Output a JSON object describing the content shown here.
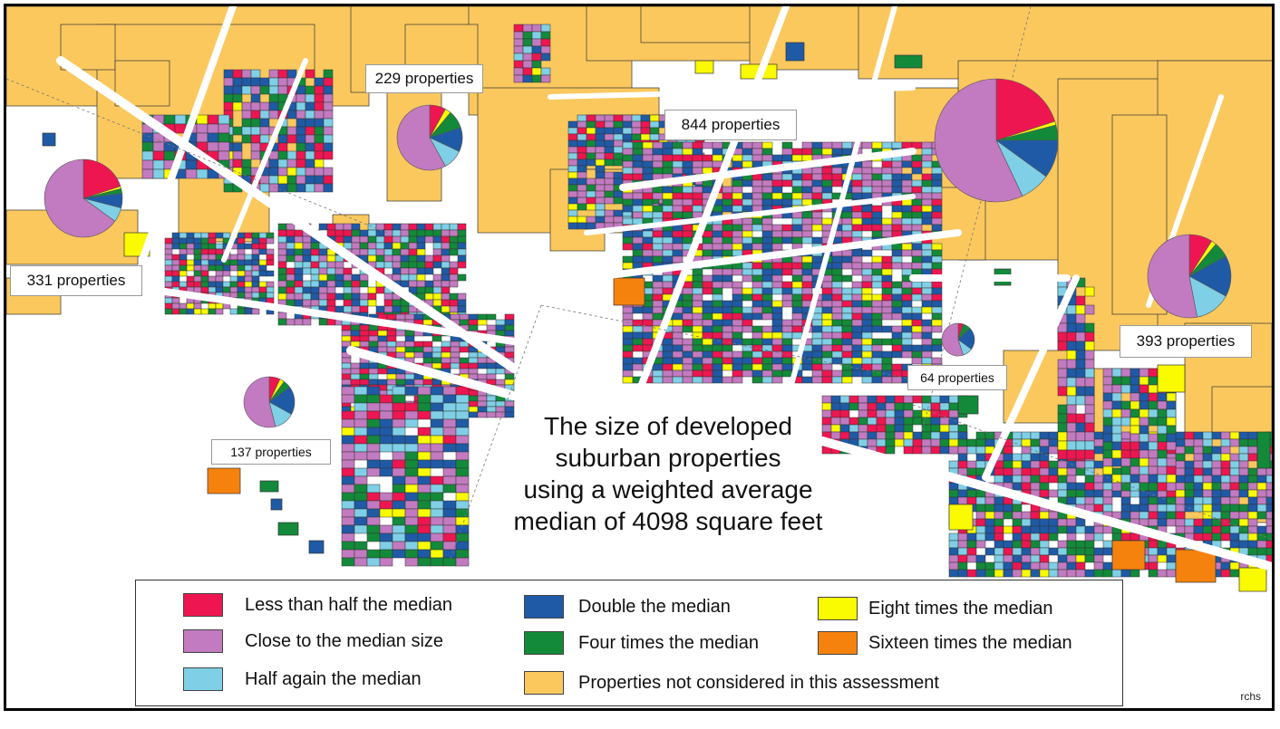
{
  "colors": {
    "less_than_half": "#ee1650",
    "close_to_median": "#c27ac0",
    "half_again": "#7fd0e6",
    "double": "#1f5aa6",
    "four_times": "#138a3a",
    "eight_times": "#fafa00",
    "sixteen_times": "#f6820e",
    "not_considered": "#fbc85e",
    "road": "#ffffff",
    "outline": "#333333"
  },
  "title": {
    "line1": "The size of developed",
    "line2": "suburban  properties",
    "line3": "using a  weighted average",
    "line4": "median of 4098 square feet"
  },
  "callouts": {
    "c229": "229 properties",
    "c844": "844 properties",
    "c331": "331 properties",
    "c137": "137 properties",
    "c64": "64 properties",
    "c393": "393 properties"
  },
  "pies": [
    {
      "label": "229 properties",
      "slices": [
        {
          "cat": "less_than_half",
          "pct": 8
        },
        {
          "cat": "eight_times",
          "pct": 3
        },
        {
          "cat": "four_times",
          "pct": 9
        },
        {
          "cat": "double",
          "pct": 12
        },
        {
          "cat": "half_again",
          "pct": 10
        },
        {
          "cat": "close_to_median",
          "pct": 58
        }
      ]
    },
    {
      "label": "844 properties",
      "slices": [
        {
          "cat": "less_than_half",
          "pct": 20
        },
        {
          "cat": "eight_times",
          "pct": 1
        },
        {
          "cat": "four_times",
          "pct": 4
        },
        {
          "cat": "double",
          "pct": 10
        },
        {
          "cat": "half_again",
          "pct": 8
        },
        {
          "cat": "close_to_median",
          "pct": 57
        }
      ]
    },
    {
      "label": "331 properties",
      "slices": [
        {
          "cat": "less_than_half",
          "pct": 20
        },
        {
          "cat": "eight_times",
          "pct": 1
        },
        {
          "cat": "four_times",
          "pct": 2
        },
        {
          "cat": "double",
          "pct": 6
        },
        {
          "cat": "half_again",
          "pct": 6
        },
        {
          "cat": "close_to_median",
          "pct": 65
        }
      ]
    },
    {
      "label": "137 properties",
      "slices": [
        {
          "cat": "less_than_half",
          "pct": 7
        },
        {
          "cat": "eight_times",
          "pct": 3
        },
        {
          "cat": "four_times",
          "pct": 5
        },
        {
          "cat": "double",
          "pct": 18
        },
        {
          "cat": "half_again",
          "pct": 13
        },
        {
          "cat": "close_to_median",
          "pct": 54
        }
      ]
    },
    {
      "label": "64 properties",
      "slices": [
        {
          "cat": "less_than_half",
          "pct": 5
        },
        {
          "cat": "four_times",
          "pct": 8
        },
        {
          "cat": "double",
          "pct": 22
        },
        {
          "cat": "half_again",
          "pct": 10
        },
        {
          "cat": "close_to_median",
          "pct": 55
        }
      ]
    },
    {
      "label": "393 properties",
      "slices": [
        {
          "cat": "less_than_half",
          "pct": 9
        },
        {
          "cat": "eight_times",
          "pct": 2
        },
        {
          "cat": "four_times",
          "pct": 6
        },
        {
          "cat": "double",
          "pct": 16
        },
        {
          "cat": "half_again",
          "pct": 14
        },
        {
          "cat": "close_to_median",
          "pct": 53
        }
      ]
    }
  ],
  "legend": {
    "less_than_half": "Less than half the median",
    "close_to_median": "Close to the median size",
    "half_again": "Half again the median",
    "double": "Double the median",
    "four_times": "Four times the median",
    "eight_times": "Eight times the median",
    "sixteen_times": "Sixteen times the median",
    "not_considered": "Properties not considered in this assessment"
  },
  "credit": "rchs"
}
